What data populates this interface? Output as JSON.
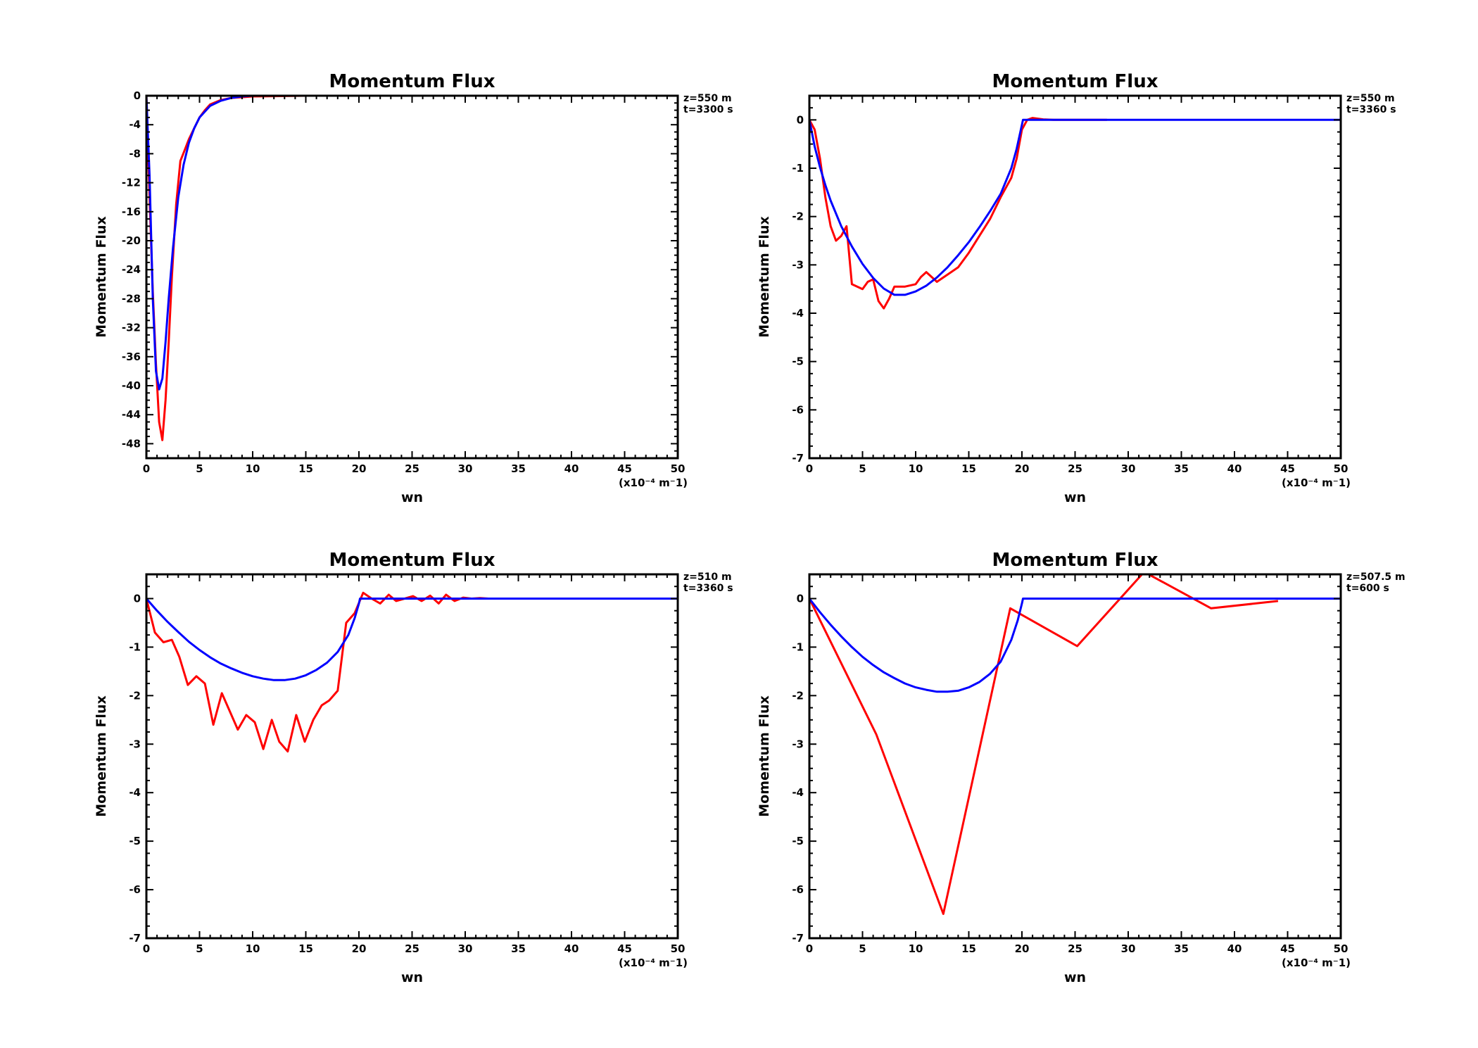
{
  "colors": {
    "red": "#ff0000",
    "blue": "#0000ff",
    "axis": "#000000"
  },
  "chart_data": [
    {
      "type": "line",
      "title": "Momentum Flux",
      "xlabel": "wn",
      "x_unit": "(x10⁻⁴ m⁻1)",
      "ylabel": "Momentum Flux",
      "xlim": [
        0,
        50
      ],
      "ylim": [
        -50,
        0
      ],
      "xticks": [
        0,
        5,
        10,
        15,
        20,
        25,
        30,
        35,
        40,
        45,
        50
      ],
      "yticks": [
        0,
        -4,
        -8,
        -12,
        -16,
        -20,
        -24,
        -28,
        -32,
        -36,
        -40,
        -44,
        -48
      ],
      "info": [
        "z=550 m",
        "t=3300 s"
      ],
      "series": [
        {
          "color": "#ff0000",
          "x": [
            0,
            0.3,
            0.6,
            0.9,
            1.2,
            1.5,
            1.8,
            2.1,
            2.4,
            2.8,
            3.2,
            3.6,
            4.0,
            4.5,
            5.0,
            5.5,
            6,
            7,
            8,
            10,
            15,
            20,
            25,
            30,
            35,
            40,
            45,
            50
          ],
          "y": [
            0,
            -14,
            -27,
            -37,
            -45,
            -47.5,
            -42,
            -34,
            -25,
            -15,
            -9,
            -7.5,
            -6,
            -4.5,
            -3,
            -2,
            -1.2,
            -0.6,
            -0.3,
            -0.1,
            0,
            0,
            0,
            0,
            0,
            0,
            0,
            0
          ]
        },
        {
          "color": "#0000ff",
          "x": [
            0,
            0.3,
            0.6,
            0.9,
            1.2,
            1.5,
            1.8,
            2.1,
            2.5,
            3.0,
            3.5,
            4.0,
            4.5,
            5.0,
            6,
            7,
            8,
            9,
            10,
            15,
            20,
            25,
            30,
            35,
            40,
            45,
            50
          ],
          "y": [
            0,
            -11,
            -28,
            -38,
            -40.5,
            -39,
            -34,
            -28,
            -21,
            -14,
            -9.5,
            -6.5,
            -4.5,
            -3,
            -1.4,
            -0.7,
            -0.3,
            -0.1,
            0,
            0,
            0,
            0,
            0,
            0,
            0,
            0,
            0
          ]
        }
      ]
    },
    {
      "type": "line",
      "title": "Momentum Flux",
      "xlabel": "wn",
      "x_unit": "(x10⁻⁴ m⁻1)",
      "ylabel": "Momentum Flux",
      "xlim": [
        0,
        50
      ],
      "ylim": [
        -7,
        0.5
      ],
      "xticks": [
        0,
        5,
        10,
        15,
        20,
        25,
        30,
        35,
        40,
        45,
        50
      ],
      "yticks": [
        0,
        -1,
        -2,
        -3,
        -4,
        -5,
        -6,
        -7
      ],
      "info": [
        "z=550 m",
        "t=3360 s"
      ],
      "series": [
        {
          "color": "#ff0000",
          "x": [
            0,
            0.5,
            1,
            1.5,
            2,
            2.5,
            3,
            3.5,
            4,
            5,
            5.5,
            6,
            6.5,
            7,
            7.5,
            8,
            9,
            10,
            10.5,
            11,
            11.5,
            12,
            13,
            14,
            15,
            16,
            17,
            18,
            19,
            19.5,
            20,
            20.5,
            21,
            22,
            23,
            25,
            28
          ],
          "y": [
            0,
            -0.2,
            -0.8,
            -1.6,
            -2.2,
            -2.5,
            -2.4,
            -2.2,
            -3.4,
            -3.5,
            -3.35,
            -3.3,
            -3.75,
            -3.9,
            -3.7,
            -3.45,
            -3.45,
            -3.4,
            -3.25,
            -3.15,
            -3.25,
            -3.35,
            -3.2,
            -3.05,
            -2.75,
            -2.4,
            -2.05,
            -1.6,
            -1.2,
            -0.8,
            -0.2,
            0,
            0.04,
            0.01,
            0,
            0,
            0
          ]
        },
        {
          "color": "#0000ff",
          "x": [
            0,
            0.5,
            1,
            1.5,
            2,
            3,
            4,
            5,
            6,
            7,
            8,
            9,
            10,
            11,
            12,
            13,
            14,
            15,
            16,
            17,
            18,
            19,
            19.5,
            20,
            20.1,
            25,
            30,
            35,
            40,
            45,
            50
          ],
          "y": [
            0,
            -0.55,
            -0.98,
            -1.35,
            -1.67,
            -2.2,
            -2.62,
            -2.98,
            -3.27,
            -3.49,
            -3.62,
            -3.62,
            -3.55,
            -3.43,
            -3.26,
            -3.05,
            -2.8,
            -2.53,
            -2.22,
            -1.89,
            -1.53,
            -1.0,
            -0.6,
            -0.1,
            0,
            0,
            0,
            0,
            0,
            0,
            0
          ]
        }
      ]
    },
    {
      "type": "line",
      "title": "Momentum Flux",
      "xlabel": "wn",
      "x_unit": "(x10⁻⁴ m⁻1)",
      "ylabel": "Momentum Flux",
      "xlim": [
        0,
        50
      ],
      "ylim": [
        -7,
        0.5
      ],
      "xticks": [
        0,
        5,
        10,
        15,
        20,
        25,
        30,
        35,
        40,
        45,
        50
      ],
      "yticks": [
        0,
        -1,
        -2,
        -3,
        -4,
        -5,
        -6,
        -7
      ],
      "info": [
        "z=510 m",
        "t=3360 s"
      ],
      "series": [
        {
          "color": "#ff0000",
          "x": [
            0,
            0.8,
            1.6,
            2.4,
            3.1,
            3.9,
            4.7,
            5.5,
            6.3,
            7.1,
            7.8,
            8.6,
            9.4,
            10.2,
            11,
            11.8,
            12.5,
            13.3,
            14.1,
            14.9,
            15.7,
            16.5,
            17.2,
            18,
            18.8,
            19.6,
            20.4,
            21.2,
            22,
            22.8,
            23.5,
            24.3,
            25.1,
            25.9,
            26.7,
            27.5,
            28.2,
            29,
            29.8,
            30.6,
            31.4,
            32.2,
            33,
            33.7,
            34.5,
            35.3,
            36.1,
            36.9,
            37.6,
            38.4,
            39.2,
            40,
            40.8,
            41.6,
            42.4,
            43.1,
            43.9,
            44.7,
            45.5,
            46.3,
            47.1,
            47.8,
            48.6,
            49.4,
            50
          ],
          "y": [
            0,
            -0.7,
            -0.9,
            -0.85,
            -1.2,
            -1.78,
            -1.6,
            -1.75,
            -2.6,
            -1.95,
            -2.3,
            -2.7,
            -2.4,
            -2.55,
            -3.1,
            -2.5,
            -2.95,
            -3.15,
            -2.4,
            -2.95,
            -2.5,
            -2.2,
            -2.1,
            -1.9,
            -0.5,
            -0.3,
            0.12,
            0.0,
            -0.1,
            0.08,
            -0.05,
            0.0,
            0.05,
            -0.05,
            0.06,
            -0.1,
            0.08,
            -0.05,
            0.02,
            0,
            0.01,
            0,
            0,
            0,
            0,
            0,
            0,
            0,
            0,
            0,
            0,
            0,
            0,
            0,
            0,
            0,
            0,
            0,
            0,
            0,
            0,
            0,
            0,
            0,
            0
          ]
        },
        {
          "color": "#0000ff",
          "x": [
            0,
            1,
            2,
            3,
            4,
            5,
            6,
            7,
            8,
            9,
            10,
            11,
            12,
            13,
            14,
            15,
            16,
            17,
            18,
            19,
            19.6,
            20,
            20.1,
            25,
            30,
            35,
            40,
            45,
            50
          ],
          "y": [
            0,
            -0.25,
            -0.48,
            -0.69,
            -0.89,
            -1.06,
            -1.21,
            -1.34,
            -1.44,
            -1.53,
            -1.6,
            -1.65,
            -1.68,
            -1.68,
            -1.65,
            -1.58,
            -1.47,
            -1.32,
            -1.1,
            -0.75,
            -0.4,
            -0.1,
            0,
            0,
            0,
            0,
            0,
            0,
            0
          ]
        }
      ]
    },
    {
      "type": "line",
      "title": "Momentum Flux",
      "xlabel": "wn",
      "x_unit": "(x10⁻⁴ m⁻1)",
      "ylabel": "Momentum Flux",
      "xlim": [
        0,
        50
      ],
      "ylim": [
        -7,
        0.5
      ],
      "xticks": [
        0,
        5,
        10,
        15,
        20,
        25,
        30,
        35,
        40,
        45,
        50
      ],
      "yticks": [
        0,
        -1,
        -2,
        -3,
        -4,
        -5,
        -6,
        -7
      ],
      "info": [
        "z=507.5 m",
        "t=600 s"
      ],
      "series": [
        {
          "color": "#ff0000",
          "x": [
            0,
            6.3,
            12.6,
            18.9,
            25.2,
            31.5,
            37.8,
            44.1
          ],
          "y": [
            0,
            -2.8,
            -6.5,
            -0.2,
            -0.98,
            0.55,
            -0.2,
            -0.05
          ]
        },
        {
          "color": "#0000ff",
          "x": [
            0,
            1,
            2,
            3,
            4,
            5,
            6,
            7,
            8,
            9,
            10,
            11,
            12,
            13,
            14,
            15,
            16,
            17,
            18,
            19,
            19.6,
            20,
            20.1,
            25,
            30,
            35,
            40,
            45,
            50
          ],
          "y": [
            0,
            -0.28,
            -0.54,
            -0.78,
            -1.0,
            -1.2,
            -1.37,
            -1.52,
            -1.64,
            -1.75,
            -1.83,
            -1.88,
            -1.92,
            -1.92,
            -1.9,
            -1.83,
            -1.72,
            -1.55,
            -1.3,
            -0.85,
            -0.45,
            -0.1,
            0,
            0,
            0,
            0,
            0,
            0,
            0
          ]
        }
      ]
    }
  ]
}
